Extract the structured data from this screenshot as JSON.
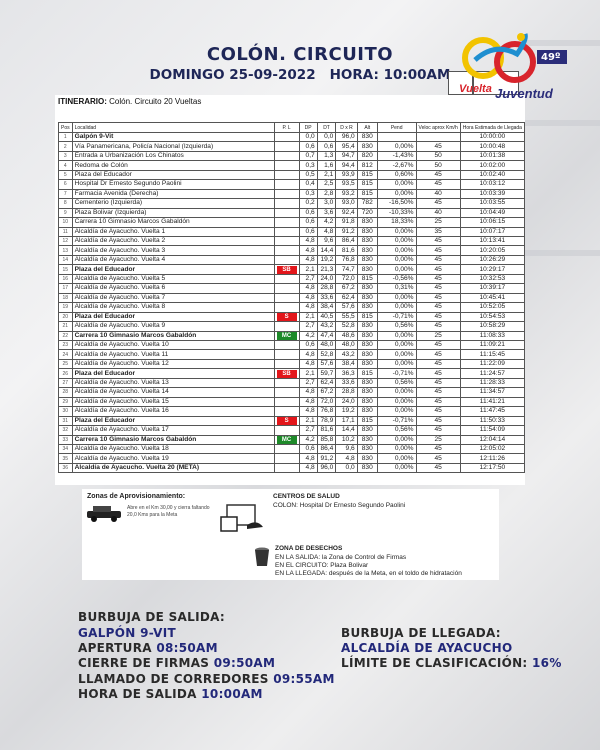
{
  "header": {
    "title": "COLÓN. CIRCUITO",
    "date": "DOMINGO 25-09-2022",
    "time": "HORA: 10:00AM"
  },
  "logo": {
    "text_top": "Vuelta",
    "text_bottom": "Juventud",
    "edition": "49º",
    "edition_sub": "edición",
    "colors": [
      "#f2c300",
      "#1f8fd0",
      "#d8242c",
      "#2b2d7a"
    ]
  },
  "itinerary": {
    "label": "ITINERARIO:",
    "value": "Colón. Circuito 20 Vueltas"
  },
  "table": {
    "headers": [
      "Pos",
      "Localidad",
      "P. L",
      "DP",
      "DT",
      "D x R",
      "Alt",
      "Pend",
      "Veloc aprox Km/h",
      "Hora Estimada de Llegada"
    ],
    "badge_colors": {
      "SB": "#e3161b",
      "S": "#e3161b",
      "MC": "#1e8a2a"
    },
    "rows": [
      [
        "1",
        "Galpón 9-Vit",
        "",
        "0,0",
        "0,0",
        "96,0",
        "830",
        "",
        "",
        "10:00:00",
        true
      ],
      [
        "2",
        "Vía Panamericana, Policía Nacional (Izquierda)",
        "",
        "0,6",
        "0,6",
        "95,4",
        "830",
        "0,00%",
        "45",
        "10:00:48",
        false
      ],
      [
        "3",
        "Entrada a Urbanización Los Chinatos",
        "",
        "0,7",
        "1,3",
        "94,7",
        "820",
        "-1,43%",
        "50",
        "10:01:38",
        false
      ],
      [
        "4",
        "Redoma de Colón",
        "",
        "0,3",
        "1,6",
        "94,4",
        "812",
        "-2,67%",
        "50",
        "10:02:00",
        false
      ],
      [
        "5",
        "Plaza del Educador",
        "",
        "0,5",
        "2,1",
        "93,9",
        "815",
        "0,60%",
        "45",
        "10:02:40",
        false
      ],
      [
        "6",
        "Hospital Dr Ernesto Segundo Paolini",
        "",
        "0,4",
        "2,5",
        "93,5",
        "815",
        "0,00%",
        "45",
        "10:03:12",
        false
      ],
      [
        "7",
        "Farmacia Avenida (Derecha)",
        "",
        "0,3",
        "2,8",
        "93,2",
        "815",
        "0,00%",
        "40",
        "10:03:39",
        false
      ],
      [
        "8",
        "Cementerio (Izquierda)",
        "",
        "0,2",
        "3,0",
        "93,0",
        "782",
        "-16,50%",
        "45",
        "10:03:55",
        false
      ],
      [
        "9",
        "Plaza Bolivar (Izquierda)",
        "",
        "0,6",
        "3,6",
        "92,4",
        "720",
        "-10,33%",
        "40",
        "10:04:49",
        false
      ],
      [
        "10",
        "Carrera 10 Gimnasio Marcos Gabaldón",
        "",
        "0,6",
        "4,2",
        "91,8",
        "830",
        "18,33%",
        "25",
        "10:06:15",
        false
      ],
      [
        "11",
        "Alcaldía de Ayacucho. Vuelta 1",
        "",
        "0,6",
        "4,8",
        "91,2",
        "830",
        "0,00%",
        "35",
        "10:07:17",
        false
      ],
      [
        "12",
        "Alcaldía de Ayacucho. Vuelta 2",
        "",
        "4,8",
        "9,6",
        "86,4",
        "830",
        "0,00%",
        "45",
        "10:13:41",
        false
      ],
      [
        "13",
        "Alcaldía de Ayacucho. Vuelta 3",
        "",
        "4,8",
        "14,4",
        "81,6",
        "830",
        "0,00%",
        "45",
        "10:20:05",
        false
      ],
      [
        "14",
        "Alcaldía de Ayacucho. Vuelta 4",
        "",
        "4,8",
        "19,2",
        "76,8",
        "830",
        "0,00%",
        "45",
        "10:26:29",
        false
      ],
      [
        "15",
        "Plaza del Educador",
        "SB",
        "2,1",
        "21,3",
        "74,7",
        "830",
        "0,00%",
        "45",
        "10:29:17",
        true
      ],
      [
        "16",
        "Alcaldía de Ayacucho. Vuelta 5",
        "",
        "2,7",
        "24,0",
        "72,0",
        "815",
        "-0,56%",
        "45",
        "10:32:53",
        false
      ],
      [
        "17",
        "Alcaldía de Ayacucho. Vuelta 6",
        "",
        "4,8",
        "28,8",
        "67,2",
        "830",
        "0,31%",
        "45",
        "10:39:17",
        false
      ],
      [
        "18",
        "Alcaldía de Ayacucho. Vuelta 7",
        "",
        "4,8",
        "33,6",
        "62,4",
        "830",
        "0,00%",
        "45",
        "10:45:41",
        false
      ],
      [
        "19",
        "Alcaldía de Ayacucho. Vuelta 8",
        "",
        "4,8",
        "38,4",
        "57,6",
        "830",
        "0,00%",
        "45",
        "10:52:05",
        false
      ],
      [
        "20",
        "Plaza del Educador",
        "S",
        "2,1",
        "40,5",
        "55,5",
        "815",
        "-0,71%",
        "45",
        "10:54:53",
        true
      ],
      [
        "21",
        "Alcaldía de Ayacucho. Vuelta 9",
        "",
        "2,7",
        "43,2",
        "52,8",
        "830",
        "0,56%",
        "45",
        "10:58:29",
        false
      ],
      [
        "22",
        "Carrera 10 Gimnasio Marcos Gabaldón",
        "MC",
        "4,2",
        "47,4",
        "48,6",
        "830",
        "0,00%",
        "25",
        "11:08:33",
        true
      ],
      [
        "23",
        "Alcaldía de Ayacucho. Vuelta 10",
        "",
        "0,6",
        "48,0",
        "48,0",
        "830",
        "0,00%",
        "45",
        "11:09:21",
        false
      ],
      [
        "24",
        "Alcaldía de Ayacucho. Vuelta 11",
        "",
        "4,8",
        "52,8",
        "43,2",
        "830",
        "0,00%",
        "45",
        "11:15:45",
        false
      ],
      [
        "25",
        "Alcaldía de Ayacucho. Vuelta 12",
        "",
        "4,8",
        "57,6",
        "38,4",
        "830",
        "0,00%",
        "45",
        "11:22:09",
        false
      ],
      [
        "26",
        "Plaza del Educador",
        "SB",
        "2,1",
        "59,7",
        "36,3",
        "815",
        "-0,71%",
        "45",
        "11:24:57",
        true
      ],
      [
        "27",
        "Alcaldía de Ayacucho. Vuelta 13",
        "",
        "2,7",
        "62,4",
        "33,6",
        "830",
        "0,56%",
        "45",
        "11:28:33",
        false
      ],
      [
        "28",
        "Alcaldía de Ayacucho. Vuelta 14",
        "",
        "4,8",
        "67,2",
        "28,8",
        "830",
        "0,00%",
        "45",
        "11:34:57",
        false
      ],
      [
        "29",
        "Alcaldía de Ayacucho. Vuelta 15",
        "",
        "4,8",
        "72,0",
        "24,0",
        "830",
        "0,00%",
        "45",
        "11:41:21",
        false
      ],
      [
        "30",
        "Alcaldía de Ayacucho. Vuelta 16",
        "",
        "4,8",
        "76,8",
        "19,2",
        "830",
        "0,00%",
        "45",
        "11:47:45",
        false
      ],
      [
        "31",
        "Plaza del Educador",
        "S",
        "2,1",
        "78,9",
        "17,1",
        "815",
        "-0,71%",
        "45",
        "11:50:33",
        true
      ],
      [
        "32",
        "Alcaldía de Ayacucho. Vuelta 17",
        "",
        "2,7",
        "81,6",
        "14,4",
        "830",
        "0,56%",
        "45",
        "11:54:09",
        false
      ],
      [
        "33",
        "Carrera 10 Gimnasio Marcos Gabaldón",
        "MC",
        "4,2",
        "85,8",
        "10,2",
        "830",
        "0,00%",
        "25",
        "12:04:14",
        true
      ],
      [
        "34",
        "Alcaldía de Ayacucho. Vuelta 18",
        "",
        "0,6",
        "86,4",
        "9,6",
        "830",
        "0,00%",
        "45",
        "12:05:02",
        false
      ],
      [
        "35",
        "Alcaldía de Ayacucho. Vuelta 19",
        "",
        "4,8",
        "91,2",
        "4,8",
        "830",
        "0,00%",
        "45",
        "12:11:26",
        false
      ],
      [
        "36",
        "Alcaldía de Ayacucho. Vuelta 20  (META)",
        "",
        "4,8",
        "96,0",
        "0,0",
        "830",
        "0,00%",
        "45",
        "12:17:50",
        true
      ]
    ]
  },
  "info": {
    "supply": {
      "title": "Zonas de Aprovisionamiento:",
      "text1": "Abre en el Km 30,00 y cierra faltando",
      "text2": "20,0 Kms para la Meta"
    },
    "health": {
      "title": "CENTROS DE SALUD",
      "text": "COLON:  Hospital Dr Ernesto Segundo Paolini"
    },
    "waste": {
      "title": "ZONA DE DESECHOS",
      "line1": "EN LA SALIDA: la Zona de Control de Firmas",
      "line2": "EN EL CIRCUITO: Plaza Bolivar",
      "line3": "EN LA LLEGADA: después de la Meta, en el toldo de hidratación"
    }
  },
  "bubble": {
    "start_label": "BURBUJA DE SALIDA:",
    "start_place": "GALPÓN 9-VIT",
    "opening_label": "APERTURA",
    "opening_time": "08:50AM",
    "signing_label": "CIERRE DE FIRMAS",
    "signing_time": "09:50AM",
    "call_label": "LLAMADO DE CORREDORES",
    "call_time": "09:55AM",
    "depart_label": "HORA DE SALIDA",
    "depart_time": "10:00AM",
    "finish_label": "BURBUJA DE LLEGADA:",
    "finish_place": "ALCALDÍA DE AYACUCHO",
    "limit_label": "LÍMITE DE CLASIFICACIÓN:",
    "limit_value": "16%"
  }
}
